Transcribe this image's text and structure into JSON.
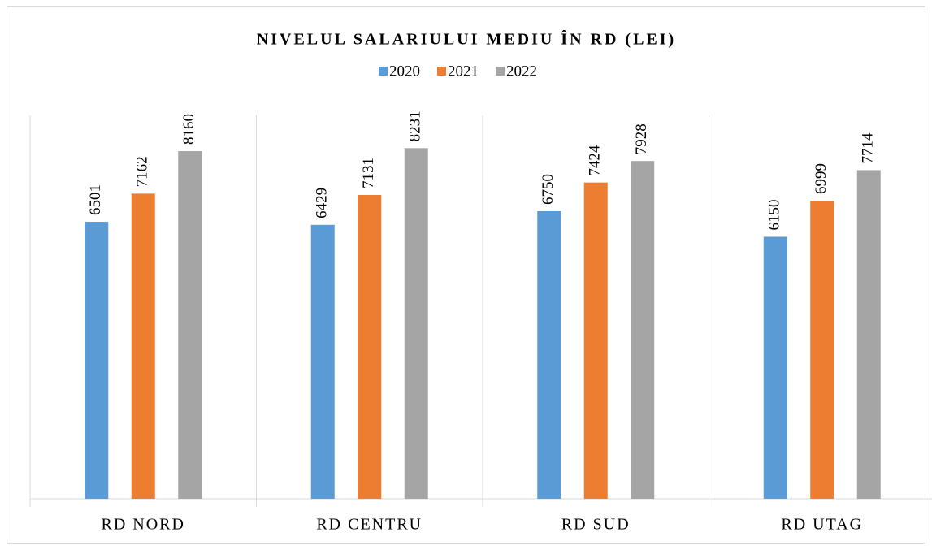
{
  "chart_data": {
    "type": "bar",
    "title": "NIVELUL SALARIULUI MEDIU ÎN RD (LEI)",
    "categories": [
      "RD NORD",
      "RD CENTRU",
      "RD SUD",
      "RD UTAG"
    ],
    "series": [
      {
        "name": "2020",
        "color": "#5b9bd5",
        "values": [
          6501,
          6429,
          6750,
          6150
        ]
      },
      {
        "name": "2021",
        "color": "#ed7d31",
        "values": [
          7162,
          7131,
          7424,
          6999
        ]
      },
      {
        "name": "2022",
        "color": "#a5a5a5",
        "values": [
          8160,
          8231,
          7928,
          7714
        ]
      }
    ],
    "ylim": [
      0,
      9000
    ],
    "legend": "top",
    "data_labels": true
  }
}
